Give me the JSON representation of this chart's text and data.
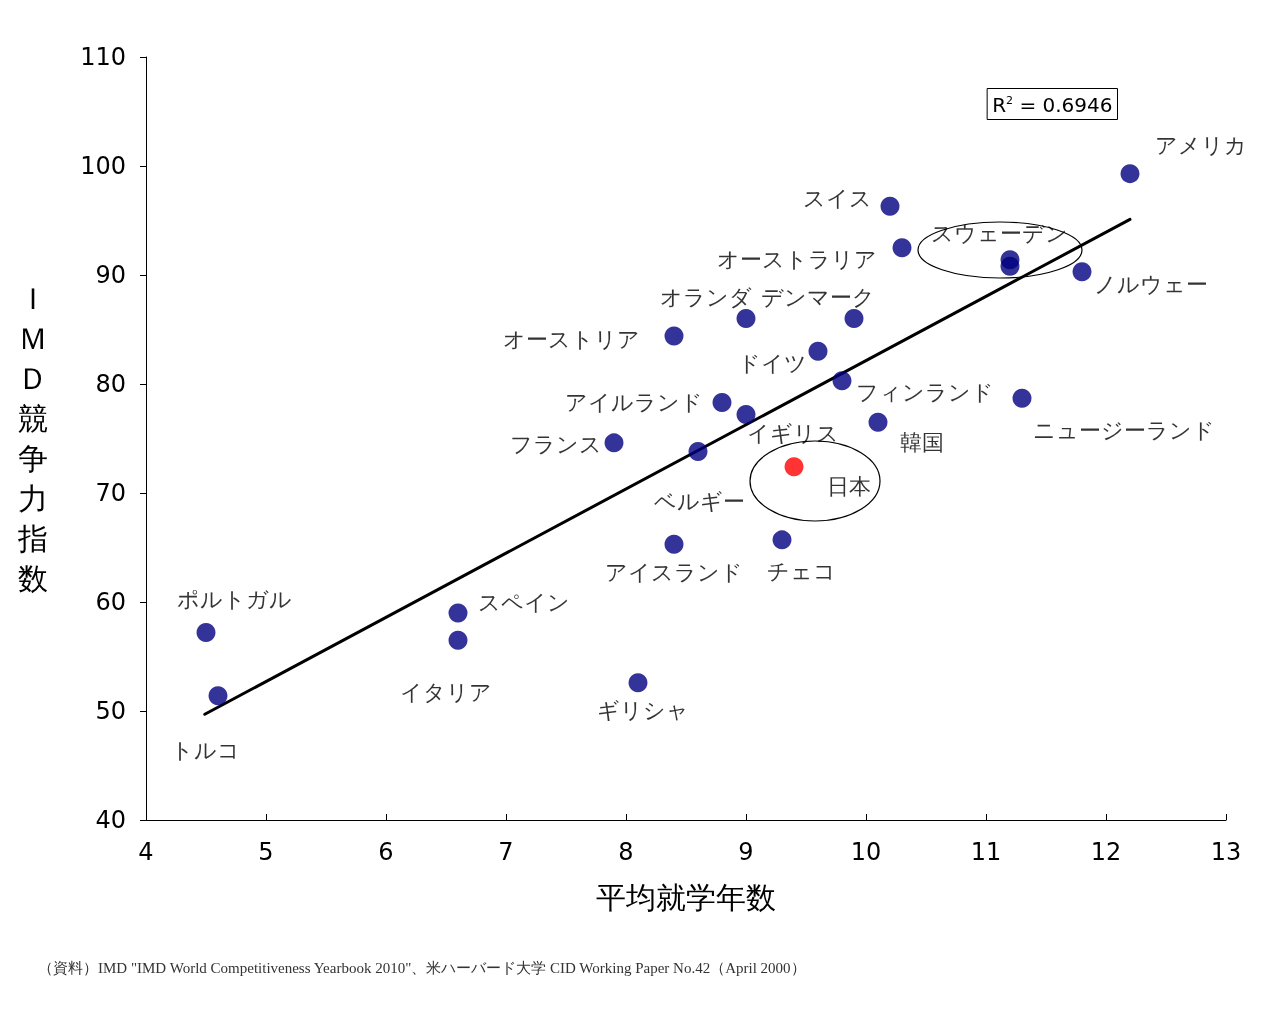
{
  "chart_data": {
    "type": "scatter",
    "xlabel": "平均就学年数",
    "ylabel": "ＩＭＤ競争力指数",
    "xlim": [
      4,
      13
    ],
    "xticks": [
      4,
      5,
      6,
      7,
      8,
      9,
      10,
      11,
      12,
      13
    ],
    "ylim": [
      40,
      110
    ],
    "yticks": [
      40,
      50,
      60,
      70,
      80,
      90,
      100,
      110
    ],
    "grid": false,
    "marker": "circle",
    "series": [
      {
        "color": "#000080",
        "x": [
          4.5,
          4.6,
          6.6,
          6.6,
          8.1,
          7.9,
          8.4,
          8.4,
          8.6,
          8.8,
          9.0,
          9.0,
          9.4,
          9.3,
          9.6,
          9.8,
          9.9,
          10.1,
          10.2,
          10.3,
          11.2,
          11.2,
          11.8,
          11.3,
          12.2
        ],
        "values": [
          57.2,
          51.4,
          59,
          56.5,
          52.6,
          74.6,
          84.4,
          65.3,
          73.8,
          78.3,
          77.2,
          86.0,
          72.4,
          65.7,
          83.0,
          80.3,
          86.0,
          76.5,
          96.3,
          92.5,
          91.4,
          90.8,
          90.3,
          78.7,
          99.3
        ],
        "colors": [
          "#000080",
          "#000080",
          "#000080",
          "#000080",
          "#000080",
          "#000080",
          "#000080",
          "#000080",
          "#000080",
          "#000080",
          "#000080",
          "#000080",
          "#ff0000",
          "#000080",
          "#000080",
          "#000080",
          "#000080",
          "#000080",
          "#000080",
          "#000080",
          "#000080",
          "#000080",
          "#000080",
          "#000080",
          "#000080"
        ]
      },
      {
        "type": "line",
        "color": "#000000",
        "x": [
          4.49,
          12.2
        ],
        "values": [
          49.7,
          95.1
        ],
        "marker": "none"
      }
    ],
    "annotations": [
      {
        "text": "スイス",
        "x": 10.2,
        "y": 96.3
      },
      {
        "text": "アメリカ",
        "x": 12.2,
        "y": 99.3
      },
      {
        "text": "スウェーデン",
        "x": 11.2,
        "y": 91.4
      },
      {
        "text": "オーストラリア",
        "x": 10.3,
        "y": 92.5
      },
      {
        "text": "ノルウェー",
        "x": 11.8,
        "y": 90.3
      },
      {
        "text": "オランダ",
        "x": 9.0,
        "y": 86.0
      },
      {
        "text": "デンマーク",
        "x": 9.9,
        "y": 86.0
      },
      {
        "text": "オーストリア",
        "x": 8.4,
        "y": 84.4
      },
      {
        "text": "ドイツ",
        "x": 9.6,
        "y": 83.0
      },
      {
        "text": "フィンランド",
        "x": 9.8,
        "y": 80.3
      },
      {
        "text": "アイルランド",
        "x": 8.8,
        "y": 78.3
      },
      {
        "text": "ニュージーランド",
        "x": 11.3,
        "y": 78.7
      },
      {
        "text": "イギリス",
        "x": 9.0,
        "y": 77.2
      },
      {
        "text": "韓国",
        "x": 10.1,
        "y": 76.5
      },
      {
        "text": "フランス",
        "x": 7.9,
        "y": 74.6
      },
      {
        "text": "日本",
        "x": 9.4,
        "y": 72.4
      },
      {
        "text": "ベルギー",
        "x": 8.6,
        "y": 73.8
      },
      {
        "text": "アイスランド",
        "x": 8.4,
        "y": 65.3
      },
      {
        "text": "チェコ",
        "x": 9.3,
        "y": 65.7
      },
      {
        "text": "スペイン",
        "x": 6.6,
        "y": 59
      },
      {
        "text": "ポルトガル",
        "x": 4.5,
        "y": 57.2
      },
      {
        "text": "イタリア",
        "x": 6.6,
        "y": 56.5
      },
      {
        "text": "ギリシャ",
        "x": 8.1,
        "y": 52.6
      },
      {
        "text": "トルコ",
        "x": 4.6,
        "y": 51.4
      },
      "R$^{2}$ = 0.6946",
      "（資料）IMD \"IMD World Competitiveness Yearbook 2010\"、米ハーバード大学 CID Working Paper No.42（April 2000）"
    ]
  }
}
